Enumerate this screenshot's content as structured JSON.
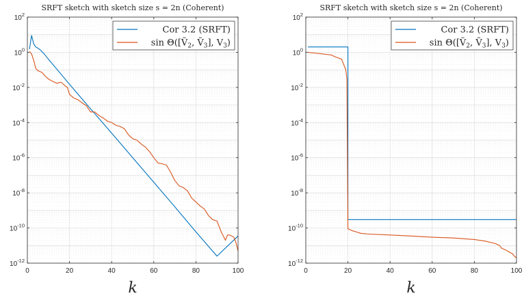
{
  "chart_data": [
    {
      "type": "line",
      "title": "SRFT sketch with sketch size s = 2n (Coherent)",
      "xlabel": "k",
      "ylabel": "",
      "xlim": [
        0,
        100
      ],
      "ylim": [
        1e-12,
        100
      ],
      "yscale": "log",
      "grid": true,
      "legend_position": "top-right",
      "x_ticks": [
        "0",
        "20",
        "40",
        "60",
        "80",
        "100"
      ],
      "y_ticks": [
        "10",
        "10",
        "10",
        "10",
        "10",
        "10",
        "10",
        "10"
      ],
      "y_tick_exps": [
        "2",
        "0",
        "-2",
        "-4",
        "-6",
        "-8",
        "-10",
        "-12"
      ],
      "series": [
        {
          "name": "Cor 3.2 (SRFT)",
          "color": "#0072BD",
          "x": [
            1,
            2,
            3,
            4,
            5,
            6,
            8,
            10,
            20,
            30,
            40,
            50,
            60,
            70,
            80,
            90,
            100
          ],
          "y": [
            1.5,
            9,
            3,
            2,
            1.7,
            1.4,
            0.8,
            0.4,
            0.015,
            0.0006,
            2.5e-05,
            1e-06,
            4e-08,
            1.6e-09,
            6e-11,
            2.5e-12,
            3.5e-11
          ]
        },
        {
          "name": "sin Θ([Ṽ2, Ṽ3], V3)",
          "color": "#D95319",
          "x": [
            1,
            2,
            3,
            4,
            5,
            6,
            7,
            8,
            10,
            12,
            14,
            16,
            18,
            19,
            20,
            22,
            24,
            26,
            28,
            30,
            32,
            34,
            36,
            38,
            40,
            42,
            44,
            46,
            48,
            50,
            52,
            54,
            56,
            58,
            60,
            62,
            64,
            66,
            68,
            70,
            72,
            74,
            76,
            78,
            80,
            82,
            84,
            86,
            88,
            90,
            92,
            94,
            95,
            96,
            98,
            99,
            100
          ],
          "y": [
            1.1,
            0.8,
            0.35,
            0.12,
            0.09,
            0.08,
            0.07,
            0.05,
            0.03,
            0.022,
            0.017,
            0.02,
            0.012,
            0.01,
            0.004,
            0.0025,
            0.002,
            0.0013,
            0.0009,
            0.0004,
            0.0004,
            0.00025,
            0.00018,
            0.00012,
            0.0001,
            7e-05,
            6e-05,
            4.5e-05,
            2e-05,
            1.2e-05,
            1e-05,
            6e-06,
            4e-06,
            2.2e-06,
            1e-06,
            5e-07,
            4.5e-07,
            3.8e-07,
            1.5e-07,
            5e-08,
            2.5e-08,
            2e-08,
            1.3e-08,
            5e-09,
            3e-09,
            1.8e-09,
            1.2e-09,
            5e-10,
            3e-10,
            2.5e-10,
            6e-11,
            2e-11,
            4e-11,
            4e-11,
            3e-11,
            1.5e-11,
            5e-12
          ]
        }
      ]
    },
    {
      "type": "line",
      "title": "SRFT sketch with sketch size s = 2n (Coherent)",
      "xlabel": "k",
      "ylabel": "",
      "xlim": [
        0,
        100
      ],
      "ylim": [
        1e-12,
        100
      ],
      "yscale": "log",
      "grid": true,
      "legend_position": "top-right",
      "x_ticks": [
        "0",
        "20",
        "40",
        "60",
        "80",
        "100"
      ],
      "y_ticks": [
        "10",
        "10",
        "10",
        "10",
        "10",
        "10",
        "10",
        "10"
      ],
      "y_tick_exps": [
        "2",
        "0",
        "-2",
        "-4",
        "-6",
        "-8",
        "-10",
        "-12"
      ],
      "series": [
        {
          "name": "Cor 3.2 (SRFT)",
          "color": "#0072BD",
          "x": [
            1,
            19,
            20,
            20.0001,
            100
          ],
          "y": [
            2,
            2,
            2,
            3e-10,
            3e-10
          ]
        },
        {
          "name": "sin Θ([Ṽ2, Ṽ3], V3)",
          "color": "#D95319",
          "x": [
            1,
            2,
            4,
            6,
            8,
            10,
            12,
            14,
            16,
            17,
            18,
            19,
            19.5,
            20,
            21,
            22,
            24,
            26,
            30,
            40,
            50,
            60,
            70,
            80,
            85,
            90,
            92,
            93,
            95,
            97,
            98,
            99,
            100
          ],
          "y": [
            1.0,
            0.95,
            0.9,
            0.85,
            0.8,
            0.75,
            0.7,
            0.55,
            0.45,
            0.4,
            0.2,
            0.1,
            0.03,
            9e-11,
            8e-11,
            7e-11,
            6e-11,
            5e-11,
            4.5e-11,
            4e-11,
            3.5e-11,
            3e-11,
            2.7e-11,
            2.2e-11,
            1.8e-11,
            1.3e-11,
            1e-11,
            7e-12,
            5.5e-12,
            4e-12,
            3.5e-12,
            2.5e-12,
            2e-12
          ]
        }
      ]
    }
  ]
}
